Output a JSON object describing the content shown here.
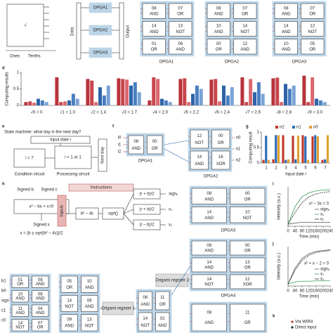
{
  "panel_labels": {
    "d": "d",
    "e": "e",
    "f": "f",
    "g": "g",
    "h": "h",
    "i": "i",
    "j": "j",
    "k": "k"
  },
  "a": {
    "symbol": "√",
    "ones": "Ones",
    "tenths": "Tenths"
  },
  "b": {
    "data": "Data",
    "output": "Output",
    "modules": [
      "DPGA1",
      "DPGA2",
      "DPGA3"
    ]
  },
  "c": {
    "modules": [
      {
        "name": "DPGA1",
        "gates": [
          [
            "08",
            "AND"
          ],
          [
            "07",
            "OR"
          ],
          [
            "14",
            "AND"
          ],
          [
            "13",
            "NOT"
          ],
          [
            "01",
            "OR"
          ],
          [
            "06",
            "AND"
          ]
        ]
      },
      {
        "name": "DPGA2",
        "gates": [
          [
            "08",
            "AND"
          ],
          [
            "07",
            "OR"
          ],
          [
            "10",
            "AND"
          ],
          [
            "14",
            "NOT"
          ],
          [
            "00",
            "OR"
          ],
          [
            "12",
            "AND"
          ]
        ]
      },
      {
        "name": "DPGA3",
        "gates": [
          [
            "08",
            "AND"
          ],
          [
            "07",
            "OR"
          ],
          [
            "14",
            "AND"
          ],
          [
            "12",
            "NOT"
          ],
          [
            "10",
            "AND"
          ],
          [
            "05",
            "OR"
          ]
        ]
      }
    ]
  },
  "e": {
    "title": "State machine: what day is the next day?",
    "input": "Input date i",
    "condition": "i = 7",
    "process": "i + 1 or 1",
    "next": "Next day",
    "condition_label": "Condition circuit",
    "process_label": "Processing circuit"
  },
  "f": {
    "inputs": [
      "i0",
      "i1",
      "i2"
    ],
    "outputs": [
      "n0",
      "n1",
      "n2"
    ],
    "modules": [
      {
        "name": "DPGA1",
        "gates": [
          [
            "08",
            "AND"
          ],
          [
            "00",
            "OR"
          ]
        ]
      },
      {
        "name": "DPGA2",
        "gates": [
          [
            "12",
            "NOT"
          ],
          [
            "00",
            "OR"
          ],
          [
            "14",
            "AND"
          ],
          [
            "16",
            "XOR"
          ]
        ]
      }
    ]
  },
  "h": {
    "signed_b": "Signed b",
    "signed_c": "Signed c",
    "equation": "x² – bx + c=0",
    "signed_x": "Signed x",
    "solution": "x = (b ± sqrt(b² – 4c))/2",
    "instructions": "Instructions",
    "inputs": "Inputs",
    "disc": "b² – 4c",
    "sqrt": "sqrt()",
    "ops": [
      "(r + b)/2",
      "(r + b)/2",
      "(r – b)/2"
    ],
    "outs": [
      "signₓ",
      "x₁",
      "x₂"
    ],
    "input_pins": [
      "b1",
      "b0",
      "sign",
      "c1",
      "c0"
    ],
    "register1": "Origami register 1",
    "register2": "Origami register 2",
    "modules": [
      {
        "name": "DPGA3",
        "gates": [
          [
            "08",
            "AND"
          ],
          [
            "00",
            "OR"
          ],
          [
            "14",
            "AND"
          ],
          [
            "10",
            "NOT"
          ]
        ]
      },
      {
        "name": "DPGA4",
        "gates": [
          [
            "08",
            "AND"
          ],
          [
            "00",
            "OR"
          ],
          [
            "14",
            "AND"
          ],
          [
            "13",
            "OR"
          ],
          [
            "14",
            "NOT"
          ],
          [
            "12",
            "XOR"
          ]
        ]
      },
      {
        "gates": [
          [
            "08",
            "AND"
          ],
          [
            "11",
            "OR"
          ]
        ]
      },
      {
        "gates": [
          [
            "01",
            "OR"
          ],
          [
            "08",
            "AND"
          ],
          [
            "10",
            "AND"
          ],
          [
            "08",
            "AND"
          ],
          [
            "11",
            "AND"
          ],
          [
            "04",
            "AND"
          ],
          [
            "14",
            "NOT"
          ],
          [
            "07",
            "OR"
          ]
        ]
      },
      {
        "gates": [
          [
            "05",
            "OR"
          ],
          [
            "10",
            "AND"
          ],
          [
            "14",
            "NOT"
          ],
          [
            "08",
            "AND"
          ],
          [
            "09",
            "AND"
          ],
          [
            "13",
            "NOT"
          ]
        ]
      },
      {
        "gates": [
          [
            "06",
            "AND"
          ],
          [
            "11",
            "OR"
          ],
          [
            "14",
            "NOT"
          ],
          [
            "02",
            "AND"
          ]
        ]
      }
    ]
  },
  "k": {
    "legend": [
      "Via WIR4",
      "Direct input"
    ]
  },
  "chart_data": [
    {
      "type": "bar",
      "y_label": "Computing results",
      "categories": [
        "√0 = 0",
        "√1 = 1.0",
        "√2 = 1.4",
        "√3 = 1.7",
        "√4 = 2.0",
        "√5 = 2.2",
        "√6 = 2.4",
        "√7 = 2.6",
        "√8 = 2.8",
        "√9 = 3.0"
      ],
      "series": [
        {
          "color": "#b8333b",
          "values": [
            0.1,
            0.85,
            0.8,
            0.82,
            0.15,
            0.8,
            0.78,
            0.85,
            0.82,
            0.9
          ]
        },
        {
          "color": "#c9454c",
          "values": [
            0.12,
            0.1,
            0.75,
            0.8,
            0.85,
            0.82,
            0.8,
            0.1,
            0.84,
            0.1
          ]
        },
        {
          "color": "#d9686e",
          "values": [
            0.08,
            0.12,
            0.1,
            0.78,
            0.8,
            0.1,
            0.12,
            0.8,
            0.1,
            0.85
          ]
        },
        {
          "color": "#2f62a8",
          "values": [
            0.2,
            0.15,
            0.55,
            0.6,
            0.2,
            0.35,
            0.6,
            0.4,
            0.65,
            0.2
          ]
        },
        {
          "color": "#4a7fc1",
          "values": [
            0.15,
            0.35,
            0.3,
            0.7,
            0.15,
            0.6,
            0.3,
            0.7,
            0.5,
            0.15
          ]
        },
        {
          "color": "#7aa3d6",
          "values": [
            0.1,
            0.2,
            0.6,
            0.4,
            0.1,
            0.5,
            0.55,
            0.35,
            0.6,
            0.1
          ]
        }
      ],
      "ylim": [
        0,
        1
      ],
      "yticks": [
        0,
        0.5,
        1
      ]
    },
    {
      "type": "bar",
      "y_label": "Computing result",
      "x_label": "Input date i",
      "categories": [
        "1",
        "2",
        "3",
        "4",
        "5",
        "6",
        "7"
      ],
      "series": [
        {
          "name": "n2",
          "color": "#c0392b",
          "values": [
            0.1,
            0.12,
            0.9,
            0.88,
            0.9,
            0.86,
            0.1
          ]
        },
        {
          "name": "n1",
          "color": "#2e6db4",
          "values": [
            0.88,
            0.9,
            0.1,
            0.12,
            0.86,
            0.9,
            0.12
          ]
        },
        {
          "name": "n0",
          "color": "#e0a030",
          "values": [
            0.1,
            0.9,
            0.12,
            0.88,
            0.1,
            0.86,
            0.9
          ]
        }
      ],
      "ylim": [
        0,
        1
      ],
      "yticks": [
        0,
        0.5,
        1
      ]
    },
    {
      "type": "line",
      "annotation": "x² – 3x = 0",
      "y_label": "Intensity (a.u.)",
      "x_label": "Time (min)",
      "x": [
        0,
        40,
        80,
        120,
        160,
        200,
        240
      ],
      "series": [
        {
          "name": "signₓ",
          "color": "#555555",
          "values": [
            0.05,
            0.08,
            0.1,
            0.1,
            0.1,
            0.1,
            0.1
          ]
        },
        {
          "name": "x₁",
          "color": "#3a9a5b",
          "values": [
            0.05,
            0.5,
            0.75,
            0.85,
            0.9,
            0.92,
            0.93
          ]
        },
        {
          "name": "x₂",
          "color": "#222222",
          "values": [
            0.05,
            0.35,
            0.6,
            0.75,
            0.82,
            0.86,
            0.88
          ]
        }
      ],
      "xlim": [
        0,
        240
      ],
      "xticks": [
        0,
        40,
        80,
        120,
        160,
        200,
        240
      ],
      "ylim": [
        0,
        1
      ]
    },
    {
      "type": "line",
      "annotation": "x² + x – 2 = 0",
      "y_label": "Intensity (a.u.)",
      "x_label": "Time (min)",
      "x": [
        0,
        40,
        80,
        120,
        160,
        200,
        240
      ],
      "series": [
        {
          "name": "signₓ",
          "color": "#555555",
          "values": [
            0.05,
            0.45,
            0.7,
            0.82,
            0.88,
            0.9,
            0.92
          ]
        },
        {
          "name": "x₁",
          "color": "#3a9a5b",
          "values": [
            0.05,
            0.1,
            0.12,
            0.12,
            0.13,
            0.13,
            0.13
          ]
        },
        {
          "name": "x₂",
          "color": "#222222",
          "values": [
            0.05,
            0.4,
            0.65,
            0.78,
            0.85,
            0.88,
            0.9
          ]
        }
      ],
      "xlim": [
        0,
        240
      ],
      "xticks": [
        0,
        40,
        80,
        120,
        160,
        200,
        240
      ],
      "ylim": [
        0,
        1
      ]
    }
  ]
}
